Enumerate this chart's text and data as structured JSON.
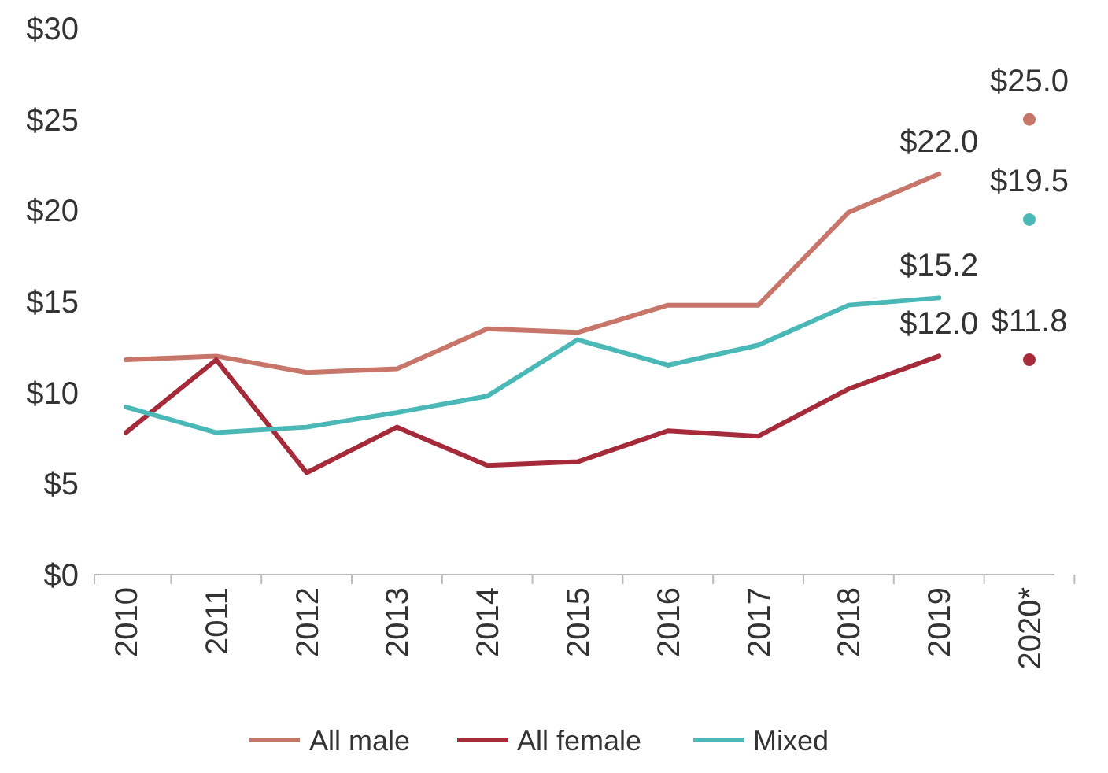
{
  "chart_data": {
    "type": "line",
    "categories": [
      "2010",
      "2011",
      "2012",
      "2013",
      "2014",
      "2015",
      "2016",
      "2017",
      "2018",
      "2019",
      "2020*"
    ],
    "ylim": [
      0,
      30
    ],
    "yticks": [
      {
        "value": 0,
        "label": "$0"
      },
      {
        "value": 5,
        "label": "$5"
      },
      {
        "value": 10,
        "label": "$10"
      },
      {
        "value": 15,
        "label": "$15"
      },
      {
        "value": 20,
        "label": "$20"
      },
      {
        "value": 25,
        "label": "$25"
      },
      {
        "value": 30,
        "label": "$30"
      }
    ],
    "grid": false,
    "legend": "bottom",
    "marker": "none",
    "line_style": "solid",
    "series": [
      {
        "name": "All male",
        "color": "#c8766a",
        "values": [
          11.8,
          12.0,
          11.1,
          11.3,
          13.5,
          13.3,
          14.8,
          14.8,
          19.9,
          22.0,
          null
        ],
        "value_labels": [
          null,
          null,
          null,
          null,
          null,
          null,
          null,
          null,
          null,
          "$22.0",
          null
        ]
      },
      {
        "name": "All female",
        "color": "#a52a3a",
        "values": [
          7.8,
          11.8,
          5.6,
          8.1,
          6.0,
          6.2,
          7.9,
          7.6,
          10.2,
          12.0,
          null
        ],
        "value_labels": [
          null,
          null,
          null,
          null,
          null,
          null,
          null,
          null,
          null,
          "$12.0",
          null
        ]
      },
      {
        "name": "Mixed",
        "color": "#4bb8b8",
        "values": [
          9.2,
          7.8,
          8.1,
          8.9,
          9.8,
          12.9,
          11.5,
          12.6,
          14.8,
          15.2,
          null
        ],
        "value_labels": [
          null,
          null,
          null,
          null,
          null,
          null,
          null,
          null,
          null,
          "$15.2",
          null
        ]
      },
      {
        "type": "scatter",
        "marker": "circle",
        "color": "#c8766a",
        "x": [
          "2020*"
        ],
        "values": [
          25.0
        ],
        "value_labels": [
          "$25.0"
        ]
      },
      {
        "type": "scatter",
        "marker": "circle",
        "color": "#4bb8b8",
        "x": [
          "2020*"
        ],
        "values": [
          19.5
        ],
        "value_labels": [
          "$19.5"
        ]
      },
      {
        "type": "scatter",
        "marker": "circle",
        "color": "#a52a3a",
        "x": [
          "2020*"
        ],
        "values": [
          11.8
        ],
        "value_labels": [
          "$11.8"
        ]
      }
    ]
  }
}
